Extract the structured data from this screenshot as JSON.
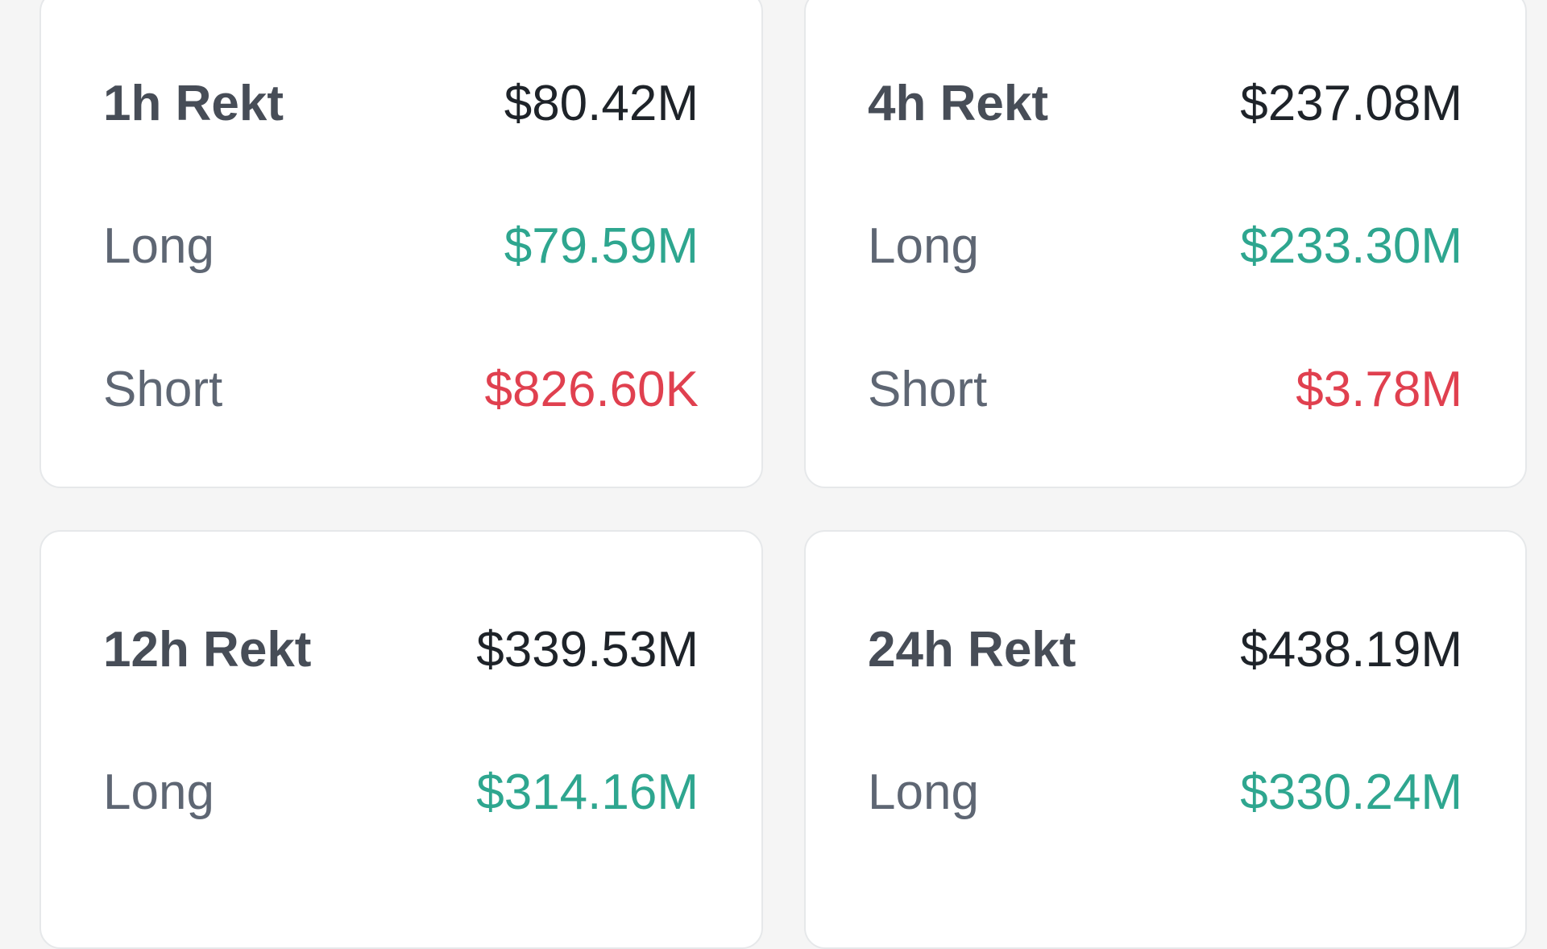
{
  "cards": [
    {
      "title": "1h Rekt",
      "total": "$80.42M",
      "long_label": "Long",
      "long": "$79.59M",
      "short_label": "Short",
      "short": "$826.60K"
    },
    {
      "title": "4h Rekt",
      "total": "$237.08M",
      "long_label": "Long",
      "long": "$233.30M",
      "short_label": "Short",
      "short": "$3.78M"
    },
    {
      "title": "12h Rekt",
      "total": "$339.53M",
      "long_label": "Long",
      "long": "$314.16M"
    },
    {
      "title": "24h Rekt",
      "total": "$438.19M",
      "long_label": "Long",
      "long": "$330.24M"
    }
  ],
  "colors": {
    "long": "#2ea68f",
    "short": "#e0404f",
    "text": "#1e2329"
  }
}
